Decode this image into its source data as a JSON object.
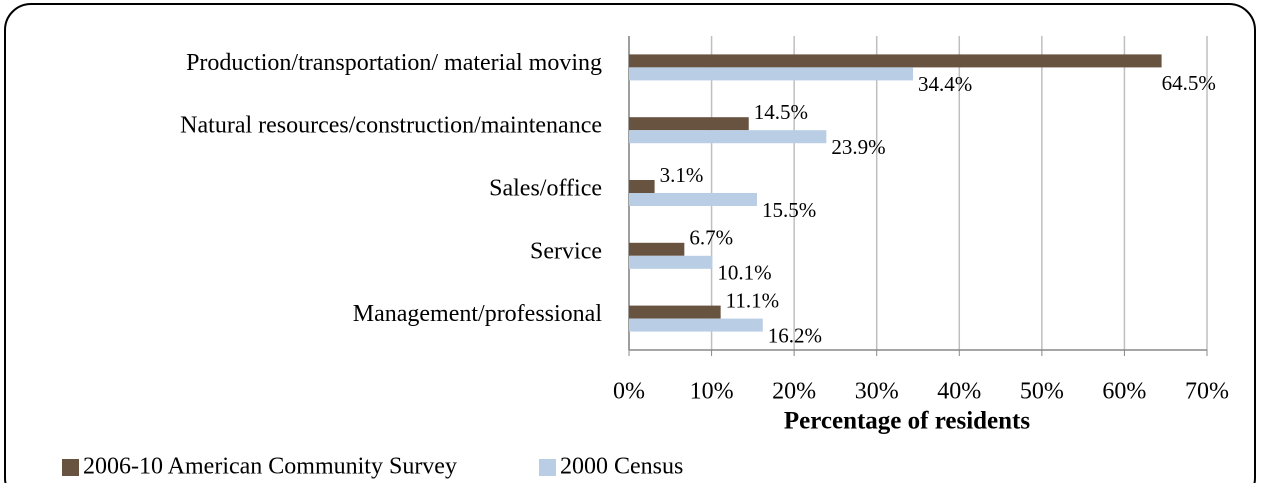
{
  "chart_data": {
    "type": "barh",
    "categories": [
      "Production/transportation/ material moving",
      "Natural resources/construction/maintenance",
      "Sales/office",
      "Service",
      "Management/professional"
    ],
    "series": [
      {
        "name": "2006-10 American Community Survey",
        "color": "#67533f",
        "values": [
          64.5,
          14.5,
          3.1,
          6.7,
          11.1
        ],
        "value_labels": [
          "64.5%",
          "14.5%",
          "3.1%",
          "6.7%",
          "11.1%"
        ]
      },
      {
        "name": "2000 Census",
        "color": "#b9cde5",
        "values": [
          34.4,
          23.9,
          15.5,
          10.1,
          16.2
        ],
        "value_labels": [
          "34.4%",
          "23.9%",
          "15.5%",
          "10.1%",
          "16.2%"
        ]
      }
    ],
    "xlabel": "Percentage of residents",
    "xlim": [
      0,
      70
    ],
    "xticks": [
      {
        "value": 0,
        "label": "0%"
      },
      {
        "value": 10,
        "label": "10%"
      },
      {
        "value": 20,
        "label": "20%"
      },
      {
        "value": 30,
        "label": "30%"
      },
      {
        "value": 40,
        "label": "40%"
      },
      {
        "value": 50,
        "label": "50%"
      },
      {
        "value": 60,
        "label": "60%"
      },
      {
        "value": 70,
        "label": "70%"
      }
    ],
    "grid": true,
    "legend": "bottom"
  }
}
